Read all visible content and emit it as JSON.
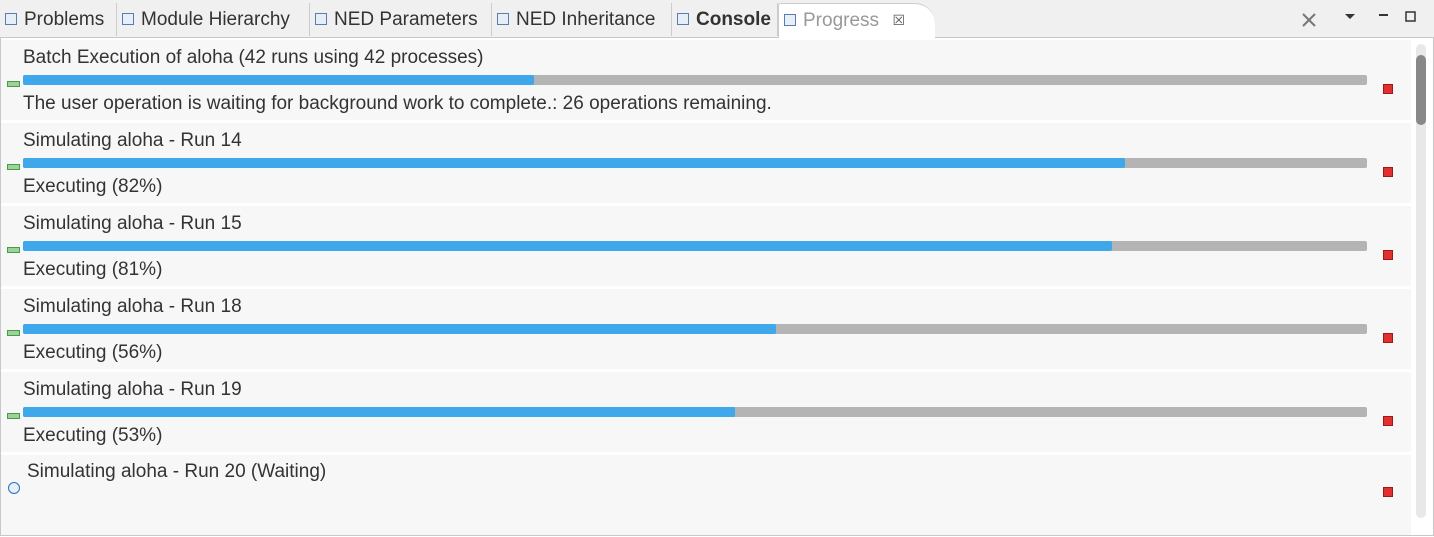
{
  "tabs": [
    {
      "label": "Problems"
    },
    {
      "label": "Module Hierarchy"
    },
    {
      "label": "NED Parameters"
    },
    {
      "label": "NED Inheritance"
    },
    {
      "label": "Console"
    },
    {
      "label": "Progress"
    }
  ],
  "items": [
    {
      "title": "Batch Execution of aloha (42 runs using 42 processes)",
      "status": "The user operation is waiting for background work to complete.: 26 operations remaining.",
      "progress": 38
    },
    {
      "title": "Simulating aloha - Run 14",
      "status": "Executing (82%)",
      "progress": 82
    },
    {
      "title": "Simulating aloha - Run 15",
      "status": "Executing (81%)",
      "progress": 81
    },
    {
      "title": "Simulating aloha - Run 18",
      "status": "Executing (56%)",
      "progress": 56
    },
    {
      "title": "Simulating aloha - Run 19",
      "status": "Executing (53%)",
      "progress": 53
    },
    {
      "title": "Simulating aloha - Run 20 (Waiting)"
    }
  ]
}
